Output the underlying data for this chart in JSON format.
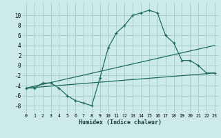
{
  "xlabel": "Humidex (Indice chaleur)",
  "background_color": "#cceae8",
  "grid_color": "#aacfcd",
  "line_color": "#1e6b5e",
  "xlim": [
    -0.5,
    23.5
  ],
  "ylim": [
    -9.5,
    12.5
  ],
  "yticks": [
    -8,
    -6,
    -4,
    -2,
    0,
    2,
    4,
    6,
    8,
    10
  ],
  "xticks": [
    0,
    1,
    2,
    3,
    4,
    5,
    6,
    7,
    8,
    9,
    10,
    11,
    12,
    13,
    14,
    15,
    16,
    17,
    18,
    19,
    20,
    21,
    22,
    23
  ],
  "line1_x": [
    0,
    1,
    2,
    3,
    4,
    5,
    6,
    7,
    8,
    9,
    10,
    11,
    12,
    13,
    14,
    15,
    16,
    17,
    18,
    19,
    20,
    21,
    22,
    23
  ],
  "line1_y": [
    -4.5,
    -4.5,
    -3.5,
    -3.5,
    -4.5,
    -6,
    -7,
    -7.5,
    -8,
    -2.5,
    3.5,
    6.5,
    8,
    10,
    10.5,
    11,
    10.5,
    6,
    4.5,
    1,
    1,
    0,
    -1.5,
    -1.5
  ],
  "line2_x": [
    0,
    23
  ],
  "line2_y": [
    -4.5,
    4.0
  ],
  "line3_x": [
    0,
    23
  ],
  "line3_y": [
    -4.5,
    -1.5
  ]
}
